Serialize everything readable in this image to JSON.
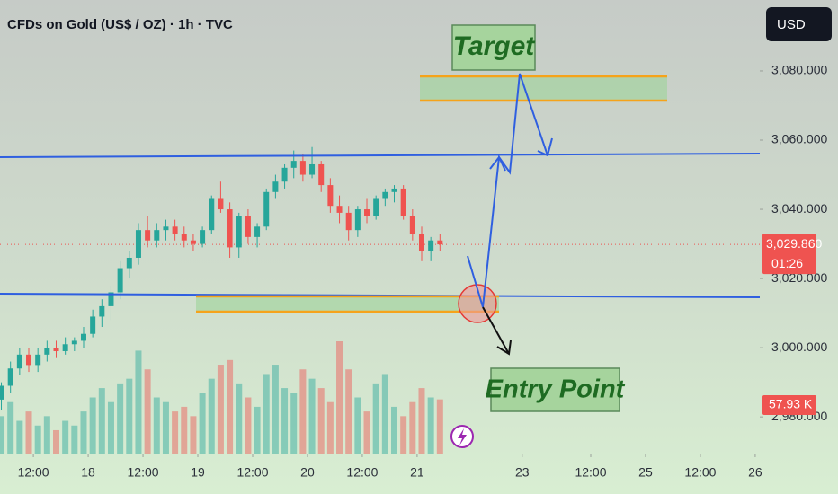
{
  "chart_data": {
    "type": "candlestick",
    "title": "CFDs on Gold (US$ / OZ) · 1h · TVC",
    "currency": "USD",
    "up_color": "#26a69a",
    "down_color": "#ef5350",
    "x": [
      -7,
      -5,
      -3,
      -1,
      1,
      3,
      5,
      7,
      9,
      11,
      13,
      15,
      17,
      19,
      21,
      23,
      25,
      27,
      29,
      31,
      33,
      35,
      37,
      39,
      41,
      43,
      45,
      47,
      49,
      51,
      53,
      55,
      57,
      59,
      61,
      63,
      65,
      67,
      69,
      71,
      73,
      75,
      77,
      79,
      81,
      83,
      85,
      87,
      89
    ],
    "open": [
      2985,
      2989,
      2994,
      2998,
      2995,
      2998,
      3000,
      2999,
      3001,
      3002,
      3004,
      3009,
      3012,
      3016,
      3023,
      3026,
      3034,
      3031,
      3034,
      3035,
      3033,
      3031,
      3030,
      3034,
      3043,
      3040,
      3029,
      3038,
      3032,
      3035,
      3045,
      3048,
      3052,
      3054,
      3050,
      3053,
      3047,
      3041,
      3039,
      3034,
      3040,
      3038,
      3043,
      3045,
      3046,
      3038,
      3033,
      3028,
      3031
    ],
    "high": [
      2990,
      2996,
      3000,
      3000,
      3000,
      3002,
      3002,
      3003,
      3003,
      3006,
      3011,
      3014,
      3018,
      3025,
      3028,
      3036,
      3038,
      3036,
      3037,
      3037,
      3035,
      3033,
      3035,
      3044,
      3048,
      3042,
      3039,
      3040,
      3036,
      3046,
      3050,
      3053,
      3057,
      3056,
      3058,
      3054,
      3049,
      3044,
      3041,
      3041,
      3043,
      3044,
      3046,
      3047,
      3047,
      3040,
      3035,
      3032,
      3033
    ],
    "low": [
      2982,
      2987,
      2992,
      2993,
      2993,
      2996,
      2997,
      2998,
      2999,
      3000,
      3003,
      3006,
      3008,
      3014,
      3020,
      3024,
      3029,
      3029,
      3031,
      3031,
      3029,
      3028,
      3029,
      3033,
      3039,
      3026,
      3026,
      3030,
      3029,
      3034,
      3043,
      3046,
      3049,
      3048,
      3049,
      3045,
      3039,
      3036,
      3031,
      3032,
      3036,
      3037,
      3041,
      3042,
      3037,
      3031,
      3025,
      3025,
      3028
    ],
    "close": [
      2989,
      2994,
      2998,
      2995,
      2998,
      3000,
      2999,
      3001,
      3002,
      3004,
      3009,
      3012,
      3016,
      3023,
      3026,
      3034,
      3031,
      3034,
      3035,
      3033,
      3031,
      3030,
      3034,
      3043,
      3040,
      3029,
      3038,
      3032,
      3035,
      3045,
      3048,
      3052,
      3054,
      3050,
      3053,
      3047,
      3041,
      3039,
      3034,
      3040,
      3038,
      3043,
      3045,
      3046,
      3038,
      3033,
      3028,
      3031,
      3029.86
    ],
    "volume": [
      40,
      55,
      35,
      45,
      30,
      40,
      25,
      35,
      30,
      45,
      60,
      70,
      55,
      75,
      80,
      110,
      90,
      60,
      55,
      45,
      50,
      40,
      65,
      80,
      95,
      100,
      75,
      60,
      50,
      85,
      95,
      70,
      65,
      90,
      80,
      70,
      55,
      120,
      90,
      60,
      45,
      75,
      85,
      50,
      40,
      55,
      70,
      60,
      57.93
    ],
    "last_price": {
      "value": 3029.86,
      "label": "3,029.860"
    },
    "countdown": "01:26",
    "volume_label": "57.93 K",
    "xlim": [
      -7.3,
      159
    ],
    "xticks": [
      {
        "value": 0,
        "label": "12:00"
      },
      {
        "value": 12,
        "label": "18"
      },
      {
        "value": 24,
        "label": "12:00"
      },
      {
        "value": 36,
        "label": "19"
      },
      {
        "value": 48,
        "label": "12:00"
      },
      {
        "value": 60,
        "label": "20"
      },
      {
        "value": 72,
        "label": "12:00"
      },
      {
        "value": 84,
        "label": "21"
      },
      {
        "value": 107,
        "label": "23"
      },
      {
        "value": 122,
        "label": "12:00"
      },
      {
        "value": 134,
        "label": "25"
      },
      {
        "value": 146,
        "label": "12:00"
      },
      {
        "value": 158,
        "label": "26"
      }
    ],
    "ylim": [
      2969.4,
      3100.5
    ],
    "yticks": [
      {
        "value": 2980,
        "label": "2,980.000"
      },
      {
        "value": 3000,
        "label": "3,000.000"
      },
      {
        "value": 3020,
        "label": "3,020.000"
      },
      {
        "value": 3040,
        "label": "3,040.000"
      },
      {
        "value": 3060,
        "label": "3,060.000"
      },
      {
        "value": 3080,
        "label": "3,080.000"
      }
    ],
    "annotations": {
      "target": "Target",
      "entry": "Entry Point"
    }
  }
}
